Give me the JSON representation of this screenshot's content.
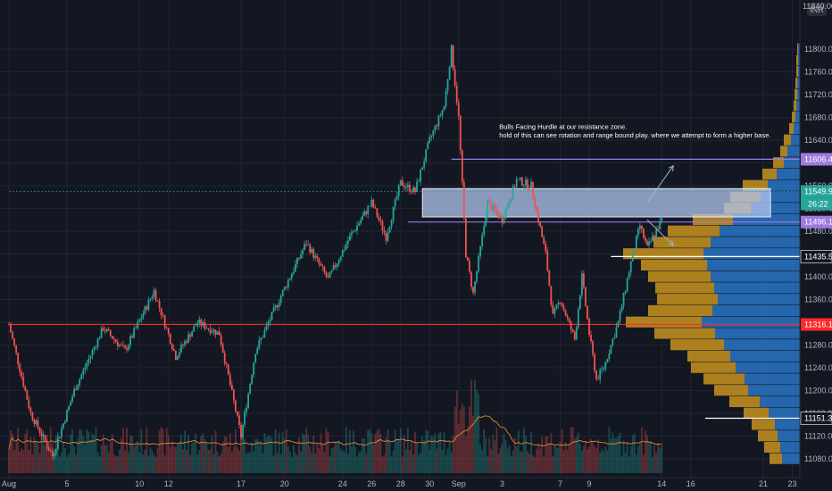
{
  "chart_data": {
    "type": "candlestick",
    "currency": "INR",
    "top_price_label": "11840.00",
    "ylim": [
      11060,
      11840
    ],
    "y_ticks": [
      11080,
      11120,
      11160,
      11200,
      11240,
      11280,
      11320,
      11360,
      11400,
      11440,
      11480,
      11520,
      11560,
      11600,
      11640,
      11680,
      11720,
      11760,
      11800
    ],
    "x_ticks": [
      {
        "label": "Aug",
        "x": 0
      },
      {
        "label": "5",
        "x": 4
      },
      {
        "label": "10",
        "x": 9
      },
      {
        "label": "12",
        "x": 11
      },
      {
        "label": "17",
        "x": 16
      },
      {
        "label": "20",
        "x": 19
      },
      {
        "label": "24",
        "x": 23
      },
      {
        "label": "26",
        "x": 25
      },
      {
        "label": "28",
        "x": 27
      },
      {
        "label": "30",
        "x": 29
      },
      {
        "label": "Sep",
        "x": 31
      },
      {
        "label": "3",
        "x": 34
      },
      {
        "label": "7",
        "x": 38
      },
      {
        "label": "9",
        "x": 40
      },
      {
        "label": "14",
        "x": 45
      },
      {
        "label": "16",
        "x": 47
      },
      {
        "label": "21",
        "x": 52
      },
      {
        "label": "23",
        "x": 54
      }
    ],
    "last_x": 45,
    "price_path": [
      [
        0,
        11316
      ],
      [
        1.5,
        11160
      ],
      [
        3,
        11085
      ],
      [
        4.5,
        11200
      ],
      [
        6.5,
        11310
      ],
      [
        8,
        11270
      ],
      [
        10,
        11375
      ],
      [
        11.5,
        11260
      ],
      [
        13,
        11320
      ],
      [
        14.5,
        11300
      ],
      [
        16,
        11120
      ],
      [
        17,
        11270
      ],
      [
        19,
        11380
      ],
      [
        20.5,
        11460
      ],
      [
        22,
        11395
      ],
      [
        23.5,
        11470
      ],
      [
        25,
        11530
      ],
      [
        26,
        11470
      ],
      [
        27,
        11565
      ],
      [
        28,
        11550
      ],
      [
        29,
        11640
      ],
      [
        30,
        11700
      ],
      [
        30.5,
        11800
      ],
      [
        31,
        11680
      ],
      [
        31.5,
        11440
      ],
      [
        32,
        11370
      ],
      [
        33,
        11530
      ],
      [
        34,
        11500
      ],
      [
        35,
        11570
      ],
      [
        36,
        11560
      ],
      [
        37,
        11440
      ],
      [
        37.5,
        11330
      ],
      [
        38,
        11360
      ],
      [
        39,
        11290
      ],
      [
        39.5,
        11400
      ],
      [
        40,
        11300
      ],
      [
        40.5,
        11220
      ],
      [
        41,
        11240
      ],
      [
        42,
        11320
      ],
      [
        43,
        11440
      ],
      [
        43.5,
        11490
      ],
      [
        44,
        11450
      ],
      [
        45,
        11500
      ]
    ],
    "horizontal_levels": [
      {
        "price": 11606.45,
        "label": "11606.45",
        "color": "#9c7ae0",
        "from_x": 30.5
      },
      {
        "price": 11549.95,
        "label": "11549.95",
        "color": "#26a69a",
        "from_x": 0,
        "dashed": true
      },
      {
        "price": 11496.15,
        "label": "11496.15",
        "color": "#9c7ae0",
        "from_x": 27.5
      },
      {
        "price": 11435.5,
        "label": "11435.50",
        "color": "#ffffff",
        "from_x": 41.5
      },
      {
        "price": 11316.15,
        "label": "11316.15",
        "color": "#ff2a2a",
        "from_x": 0
      },
      {
        "price": 11151.35,
        "label": "11151.35",
        "color": "#ffffff",
        "from_x": 48
      }
    ],
    "countdown_label": "26:22",
    "resistance_zone": {
      "price_low": 11505,
      "price_high": 11555,
      "from_x": 28.5,
      "to_x": 52.5
    },
    "annotation_lines": [
      "Bulls Facing Hurdle at our resistance zone.",
      "hold of this can see rotation and range bound play. where we attempt to form a higher base."
    ],
    "arrows": [
      {
        "from": [
          44,
          11530
        ],
        "to": [
          45.8,
          11595
        ]
      },
      {
        "from": [
          44,
          11500
        ],
        "to": [
          45.8,
          11455
        ]
      }
    ],
    "volume_profile": {
      "bucket_size": 20,
      "buckets": [
        {
          "price": 11080,
          "up": 20,
          "down": 14
        },
        {
          "price": 11100,
          "up": 22,
          "down": 18
        },
        {
          "price": 11120,
          "up": 25,
          "down": 22
        },
        {
          "price": 11140,
          "up": 28,
          "down": 26
        },
        {
          "price": 11160,
          "up": 35,
          "down": 28
        },
        {
          "price": 11180,
          "up": 45,
          "down": 34
        },
        {
          "price": 11200,
          "up": 58,
          "down": 38
        },
        {
          "price": 11220,
          "up": 62,
          "down": 46
        },
        {
          "price": 11240,
          "up": 72,
          "down": 50
        },
        {
          "price": 11260,
          "up": 78,
          "down": 48
        },
        {
          "price": 11280,
          "up": 85,
          "down": 60
        },
        {
          "price": 11300,
          "up": 95,
          "down": 68
        },
        {
          "price": 11320,
          "up": 110,
          "down": 85
        },
        {
          "price": 11340,
          "up": 98,
          "down": 72
        },
        {
          "price": 11360,
          "up": 92,
          "down": 68
        },
        {
          "price": 11380,
          "up": 96,
          "down": 66
        },
        {
          "price": 11400,
          "up": 100,
          "down": 70
        },
        {
          "price": 11420,
          "up": 104,
          "down": 74
        },
        {
          "price": 11440,
          "up": 108,
          "down": 90
        },
        {
          "price": 11460,
          "up": 100,
          "down": 64
        },
        {
          "price": 11480,
          "up": 90,
          "down": 58
        },
        {
          "price": 11500,
          "up": 75,
          "down": 45
        },
        {
          "price": 11520,
          "up": 55,
          "down": 30
        },
        {
          "price": 11540,
          "up": 44,
          "down": 34
        },
        {
          "price": 11560,
          "up": 36,
          "down": 28
        },
        {
          "price": 11580,
          "up": 26,
          "down": 16
        },
        {
          "price": 11600,
          "up": 18,
          "down": 12
        },
        {
          "price": 11620,
          "up": 14,
          "down": 8
        },
        {
          "price": 11640,
          "up": 10,
          "down": 8
        },
        {
          "price": 11660,
          "up": 7,
          "down": 5
        },
        {
          "price": 11680,
          "up": 5,
          "down": 4
        },
        {
          "price": 11700,
          "up": 4,
          "down": 3
        },
        {
          "price": 11720,
          "up": 3,
          "down": 3
        },
        {
          "price": 11740,
          "up": 3,
          "down": 2
        },
        {
          "price": 11760,
          "up": 2,
          "down": 2
        },
        {
          "price": 11780,
          "up": 2,
          "down": 2
        },
        {
          "price": 11800,
          "up": 2,
          "down": 1
        }
      ]
    },
    "colors": {
      "background": "#131722",
      "grid": "#1f2433",
      "candle_up": "#26a69a",
      "candle_down": "#ef5350",
      "zone_fill": "#b3c7f0",
      "profile_up": "#2a74c4",
      "profile_down": "#c9931e",
      "volume_ma": "#d98a3a",
      "axis_text": "#b2b5be"
    }
  }
}
